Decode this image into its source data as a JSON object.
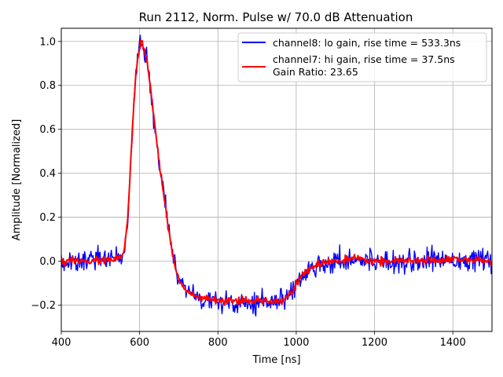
{
  "chart_data": {
    "type": "line",
    "title": "Run 2112, Norm. Pulse w/ 70.0 dB Attenuation",
    "xlabel": "Time [ns]",
    "ylabel": "Amplitude [Normalized]",
    "xlim": [
      400,
      1500
    ],
    "ylim": [
      -0.32,
      1.06
    ],
    "x_ticks": [
      400,
      600,
      800,
      1000,
      1200,
      1400
    ],
    "y_ticks": [
      -0.2,
      0.0,
      0.2,
      0.4,
      0.6,
      0.8,
      1.0
    ],
    "x_tick_labels": [
      "400",
      "600",
      "800",
      "1000",
      "1200",
      "1400"
    ],
    "y_tick_labels": [
      "−0.2",
      "0.0",
      "0.2",
      "0.4",
      "0.6",
      "0.8",
      "1.0"
    ],
    "grid": true,
    "legend_position": "top-right",
    "legend_extra_text": "Gain Ratio: 23.65",
    "series": [
      {
        "name": "channel8: lo gain, rise time = 533.3ns",
        "color": "#0000ff",
        "noise": 0.025,
        "x": [
          400,
          480,
          540,
          560,
          570,
          580,
          590,
          600,
          605,
          610,
          620,
          630,
          640,
          650,
          660,
          670,
          680,
          690,
          700,
          720,
          740,
          760,
          800,
          850,
          900,
          950,
          970,
          990,
          1000,
          1020,
          1040,
          1060,
          1100,
          1150,
          1200,
          1300,
          1400,
          1500
        ],
        "y": [
          0.0,
          0.0,
          0.01,
          0.03,
          0.2,
          0.55,
          0.85,
          0.97,
          1.0,
          0.98,
          0.9,
          0.75,
          0.6,
          0.45,
          0.32,
          0.2,
          0.08,
          -0.02,
          -0.08,
          -0.14,
          -0.16,
          -0.17,
          -0.18,
          -0.185,
          -0.18,
          -0.18,
          -0.17,
          -0.14,
          -0.1,
          -0.06,
          -0.03,
          -0.01,
          0.0,
          0.01,
          0.0,
          0.0,
          0.01,
          0.0
        ]
      },
      {
        "name": "channel7: hi gain, rise time = 37.5ns",
        "color": "#ff0000",
        "noise": 0.008,
        "x": [
          400,
          480,
          540,
          560,
          570,
          580,
          590,
          600,
          605,
          610,
          620,
          630,
          640,
          650,
          660,
          670,
          680,
          690,
          700,
          720,
          740,
          760,
          800,
          850,
          900,
          950,
          970,
          990,
          1000,
          1020,
          1040,
          1060,
          1100,
          1150,
          1200,
          1300,
          1400,
          1500
        ],
        "y": [
          0.0,
          0.0,
          0.01,
          0.03,
          0.2,
          0.55,
          0.85,
          0.97,
          1.0,
          0.98,
          0.9,
          0.75,
          0.6,
          0.45,
          0.32,
          0.2,
          0.08,
          -0.02,
          -0.08,
          -0.14,
          -0.16,
          -0.17,
          -0.18,
          -0.185,
          -0.18,
          -0.18,
          -0.17,
          -0.14,
          -0.1,
          -0.06,
          -0.03,
          -0.01,
          0.0,
          0.01,
          0.0,
          0.0,
          0.01,
          0.0
        ]
      }
    ]
  }
}
